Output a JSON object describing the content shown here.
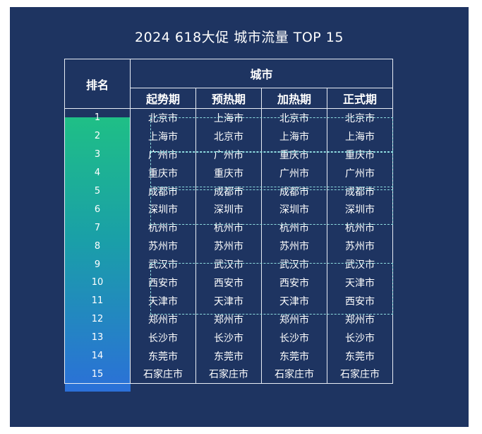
{
  "title": "2024 618大促 城市流量 TOP 15",
  "header": {
    "rank": "排名",
    "city": "城市",
    "phases": [
      "起势期",
      "预热期",
      "加热期",
      "正式期"
    ]
  },
  "rows": [
    {
      "rank": "1",
      "cities": [
        "北京市",
        "上海市",
        "北京市",
        "北京市"
      ]
    },
    {
      "rank": "2",
      "cities": [
        "上海市",
        "北京市",
        "上海市",
        "上海市"
      ]
    },
    {
      "rank": "3",
      "cities": [
        "广州市",
        "广州市",
        "重庆市",
        "重庆市"
      ]
    },
    {
      "rank": "4",
      "cities": [
        "重庆市",
        "重庆市",
        "广州市",
        "广州市"
      ]
    },
    {
      "rank": "5",
      "cities": [
        "成都市",
        "成都市",
        "成都市",
        "成都市"
      ]
    },
    {
      "rank": "6",
      "cities": [
        "深圳市",
        "深圳市",
        "深圳市",
        "深圳市"
      ]
    },
    {
      "rank": "7",
      "cities": [
        "杭州市",
        "杭州市",
        "杭州市",
        "杭州市"
      ]
    },
    {
      "rank": "8",
      "cities": [
        "苏州市",
        "苏州市",
        "苏州市",
        "苏州市"
      ]
    },
    {
      "rank": "9",
      "cities": [
        "武汉市",
        "武汉市",
        "武汉市",
        "武汉市"
      ]
    },
    {
      "rank": "10",
      "cities": [
        "西安市",
        "西安市",
        "西安市",
        "天津市"
      ]
    },
    {
      "rank": "11",
      "cities": [
        "天津市",
        "天津市",
        "天津市",
        "西安市"
      ]
    },
    {
      "rank": "12",
      "cities": [
        "郑州市",
        "郑州市",
        "郑州市",
        "郑州市"
      ]
    },
    {
      "rank": "13",
      "cities": [
        "长沙市",
        "长沙市",
        "长沙市",
        "长沙市"
      ]
    },
    {
      "rank": "14",
      "cities": [
        "东莞市",
        "东莞市",
        "东莞市",
        "东莞市"
      ]
    },
    {
      "rank": "15",
      "cities": [
        "石家庄市",
        "石家庄市",
        "石家庄市",
        "石家庄市"
      ]
    }
  ],
  "colors": {
    "panel_bg": "#1e3461",
    "rank_gradient_top": "#1fbf86",
    "rank_gradient_bottom": "#2b70d8",
    "dashed_box": "#8fdde0"
  }
}
